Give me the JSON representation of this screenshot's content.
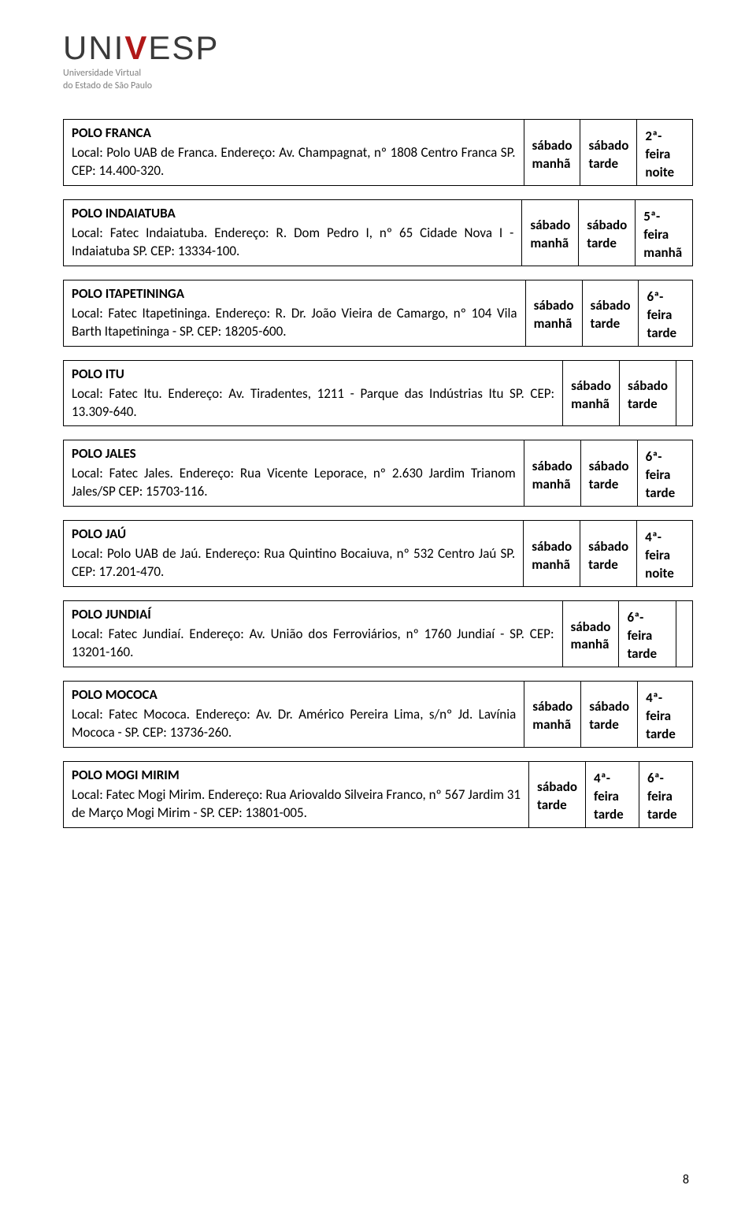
{
  "logo": {
    "name_pre": "UNI",
    "name_v": "V",
    "name_post": "ESP",
    "subtitle_l1": "Universidade Virtual",
    "subtitle_l2": "do Estado de São Paulo"
  },
  "page_number": "8",
  "colors": {
    "text": "#000000",
    "logo_gray": "#3a3a3a",
    "logo_red": "#b01818",
    "subtitle_gray": "#808080",
    "border": "#000000",
    "background": "#ffffff"
  },
  "entries": [
    {
      "title": "POLO FRANCA",
      "desc": "Local: Polo UAB de Franca. Endereço: Av. Champagnat, nº 1808 Centro Franca SP. CEP: 14.400-320.",
      "c1a": "sábado",
      "c1b": "manhã",
      "c2a": "sábado",
      "c2b": "tarde",
      "c3a": "2ª-feira",
      "c3b": "noite"
    },
    {
      "title": "POLO INDAIATUBA",
      "desc": "Local: Fatec Indaiatuba. Endereço: R. Dom Pedro I, nº 65 Cidade Nova I - Indaiatuba SP. CEP: 13334-100.",
      "c1a": "sábado",
      "c1b": "manhã",
      "c2a": "sábado",
      "c2b": "tarde",
      "c3a": "5ª-feira",
      "c3b": "manhã"
    },
    {
      "title": "POLO ITAPETININGA",
      "desc": "Local: Fatec Itapetininga. Endereço: R. Dr. João Vieira de Camargo, nº 104 Vila Barth Itapetininga - SP. CEP: 18205-600.",
      "c1a": "sábado",
      "c1b": "manhã",
      "c2a": "sábado",
      "c2b": "tarde",
      "c3a": "6ª-feira",
      "c3b": "tarde"
    },
    {
      "title": "POLO ITU",
      "desc": "Local: Fatec Itu. Endereço: Av. Tiradentes, 1211 - Parque das Indústrias Itu SP. CEP: 13.309-640.",
      "c1a": "sábado",
      "c1b": "manhã",
      "c2a": "sábado",
      "c2b": "tarde",
      "c3a": "",
      "c3b": ""
    },
    {
      "title": "POLO JALES",
      "desc": "Local: Fatec Jales. Endereço: Rua Vicente Leporace, nº 2.630 Jardim Trianom Jales/SP CEP: 15703-116.",
      "c1a": "sábado",
      "c1b": "manhã",
      "c2a": "sábado",
      "c2b": "tarde",
      "c3a": "6ª-feira",
      "c3b": "tarde"
    },
    {
      "title": "POLO JAÚ",
      "desc": "Local: Polo UAB de Jaú. Endereço: Rua Quintino Bocaiuva, nº 532 Centro Jaú SP. CEP: 17.201-470.",
      "c1a": "sábado",
      "c1b": "manhã",
      "c2a": "sábado",
      "c2b": "tarde",
      "c3a": "4ª-feira",
      "c3b": "noite"
    },
    {
      "title": "POLO JUNDIAÍ",
      "desc": "Local: Fatec Jundiaí. Endereço: Av. União dos Ferroviários, nº 1760 Jundiaí - SP. CEP: 13201-160.",
      "c1a": "sábado",
      "c1b": "manhã",
      "c2a": "6ª-feira",
      "c2b": "tarde",
      "c3a": "",
      "c3b": ""
    },
    {
      "title": "POLO MOCOCA",
      "desc": "Local: Fatec Mococa. Endereço: Av. Dr. Américo Pereira Lima, s/nº Jd. Lavínia Mococa - SP. CEP: 13736-260.",
      "c1a": "sábado",
      "c1b": "manhã",
      "c2a": "sábado",
      "c2b": "tarde",
      "c3a": "4ª-feira",
      "c3b": "tarde"
    },
    {
      "title": "POLO MOGI MIRIM",
      "desc": "Local: Fatec Mogi Mirim. Endereço: Rua Ariovaldo Silveira Franco, nº 567 Jardim 31 de Março Mogi Mirim - SP. CEP: 13801-005.",
      "c1a": "sábado",
      "c1b": "tarde",
      "c2a": "4ª-feira",
      "c2b": "tarde",
      "c3a": "6ª-feira",
      "c3b": "tarde"
    }
  ]
}
